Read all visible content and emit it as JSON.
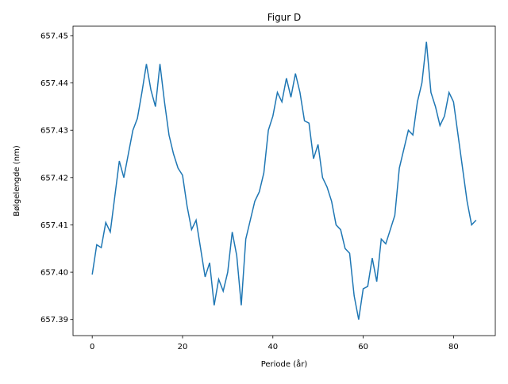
{
  "chart_data": {
    "type": "line",
    "title": "Figur D",
    "x_label": "Periode (år)",
    "y_label": "Bølgelengde (nm)",
    "x": [
      0,
      1,
      2,
      3,
      4,
      5,
      6,
      7,
      8,
      9,
      10,
      11,
      12,
      13,
      14,
      15,
      16,
      17,
      18,
      19,
      20,
      21,
      22,
      23,
      24,
      25,
      26,
      27,
      28,
      29,
      30,
      31,
      32,
      33,
      34,
      35,
      36,
      37,
      38,
      39,
      40,
      41,
      42,
      43,
      44,
      45,
      46,
      47,
      48,
      49,
      50,
      51,
      52,
      53,
      54,
      55,
      56,
      57,
      58,
      59,
      60,
      61,
      62,
      63,
      64,
      65,
      66,
      67,
      68,
      69,
      70,
      71,
      72,
      73,
      74,
      75,
      76,
      77,
      78,
      79,
      80,
      81,
      82,
      83,
      84,
      85
    ],
    "series": [
      {
        "color": "#1f77b4",
        "values": [
          657.3995,
          657.4058,
          657.4052,
          657.4105,
          657.4085,
          657.416,
          657.4235,
          657.42,
          657.425,
          657.43,
          657.4325,
          657.438,
          657.444,
          657.4385,
          657.435,
          657.444,
          657.436,
          657.429,
          657.425,
          657.422,
          657.4205,
          657.414,
          657.409,
          657.411,
          657.405,
          657.399,
          657.402,
          657.393,
          657.3985,
          657.396,
          657.4,
          657.4085,
          657.4035,
          657.393,
          657.407,
          657.411,
          657.415,
          657.417,
          657.421,
          657.43,
          657.433,
          657.438,
          657.436,
          657.441,
          657.437,
          657.442,
          657.438,
          657.432,
          657.4315,
          657.424,
          657.427,
          657.42,
          657.418,
          657.415,
          657.41,
          657.409,
          657.405,
          657.404,
          657.395,
          657.39,
          657.3965,
          657.397,
          657.403,
          657.398,
          657.407,
          657.406,
          657.409,
          657.412,
          657.422,
          657.426,
          657.43,
          657.429,
          657.436,
          657.44,
          657.4487,
          657.438,
          657.435,
          657.431,
          657.433,
          657.438,
          657.436,
          657.429,
          657.422,
          657.415,
          657.41,
          657.411
        ]
      }
    ],
    "xlim": [
      -4.25,
      89.25
    ],
    "ylim": [
      657.3866,
      657.452
    ],
    "xticks": [
      0,
      20,
      40,
      60,
      80
    ],
    "yticks": [
      657.39,
      {
        "value": 657.4,
        "label": "657.40"
      },
      657.41,
      657.42,
      657.43,
      657.44,
      657.45
    ]
  }
}
